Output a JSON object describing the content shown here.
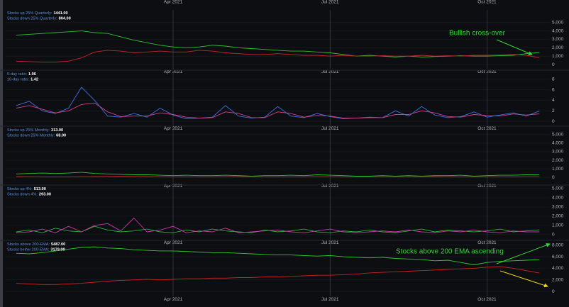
{
  "chart_data": [
    {
      "type": "line",
      "x": [
        0,
        0.25,
        0.5,
        0.75,
        1,
        1.25,
        1.5,
        1.75,
        2,
        2.25,
        2.5,
        2.75,
        3,
        3.25,
        3.5,
        3.75,
        4,
        4.25,
        4.5,
        4.75,
        5,
        5.25,
        5.5,
        5.75,
        6,
        6.25,
        6.5,
        6.75,
        7,
        7.25,
        7.5,
        7.75,
        8,
        8.25,
        8.5,
        8.75,
        9,
        9.25,
        9.5,
        9.75,
        10
      ],
      "xlim": [
        -0.2,
        10.2
      ],
      "xticks": [
        {
          "value": 3,
          "label": "Apr 2021"
        },
        {
          "value": 6,
          "label": "Jul 2021"
        },
        {
          "value": 9,
          "label": "Oct 2021"
        }
      ],
      "ylim": [
        -500,
        6500
      ],
      "yticks": [
        0,
        {
          "value": 1000,
          "label": "1,000"
        },
        {
          "value": 2000,
          "label": "2,000"
        },
        {
          "value": 3000,
          "label": "3,000"
        },
        {
          "value": 4000,
          "label": "4,000"
        },
        {
          "value": 5000,
          "label": "5,000"
        }
      ],
      "series": [
        {
          "name": "Stocks up 25% Quarterly:",
          "last_value_label": "1441.00",
          "color": "#2fc02f",
          "values": [
            3500,
            3600,
            3700,
            3800,
            3900,
            4000,
            3800,
            3700,
            3300,
            2900,
            2600,
            2300,
            2100,
            2000,
            2100,
            2300,
            2200,
            2000,
            1900,
            1800,
            1700,
            1600,
            1600,
            1500,
            1400,
            1200,
            1000,
            1100,
            1000,
            900,
            1000,
            900,
            950,
            1000,
            1050,
            1000,
            1000,
            1050,
            1100,
            1300,
            1441
          ]
        },
        {
          "name": "Stocks down 25% Quarterly:",
          "last_value_label": "804.00",
          "color": "#c4262b",
          "values": [
            400,
            350,
            300,
            300,
            400,
            800,
            1500,
            1700,
            1600,
            1400,
            1500,
            1600,
            1500,
            1500,
            1700,
            1600,
            1400,
            1300,
            1200,
            1200,
            1300,
            1200,
            1100,
            1100,
            1000,
            1100,
            1000,
            1000,
            1050,
            1000,
            1000,
            1100,
            1000,
            1050,
            1000,
            1100,
            1100,
            1150,
            1200,
            1100,
            804
          ]
        }
      ],
      "annotations": [
        {
          "text": "Bullish cross-over",
          "color": "#35d435"
        }
      ]
    },
    {
      "type": "line",
      "x": [
        0,
        0.25,
        0.5,
        0.75,
        1,
        1.25,
        1.5,
        1.75,
        2,
        2.25,
        2.5,
        2.75,
        3,
        3.25,
        3.5,
        3.75,
        4,
        4.25,
        4.5,
        4.75,
        5,
        5.25,
        5.5,
        5.75,
        6,
        6.25,
        6.5,
        6.75,
        7,
        7.25,
        7.5,
        7.75,
        8,
        8.25,
        8.5,
        8.75,
        9,
        9.25,
        9.5,
        9.75,
        10
      ],
      "xlim": [
        -0.2,
        10.2
      ],
      "xticks": [
        {
          "value": 3,
          "label": "Apr 2021"
        },
        {
          "value": 6,
          "label": "Jul 2021"
        },
        {
          "value": 9,
          "label": "Oct 2021"
        }
      ],
      "ylim": [
        -0.8,
        9.6
      ],
      "yticks": [
        0,
        2,
        4,
        6,
        8
      ],
      "series": [
        {
          "name": "5-day ratio:",
          "last_value_label": "1.96",
          "color": "#3f6fe0",
          "values": [
            3.0,
            3.8,
            2.0,
            1.5,
            2.5,
            6.5,
            4.0,
            1.0,
            0.8,
            1.5,
            0.8,
            2.5,
            1.2,
            0.5,
            0.6,
            0.8,
            3.0,
            1.0,
            0.6,
            0.8,
            2.8,
            1.0,
            0.7,
            1.5,
            0.9,
            0.5,
            0.6,
            0.8,
            0.7,
            2.0,
            1.0,
            2.8,
            1.2,
            0.7,
            0.9,
            1.8,
            0.8,
            1.2,
            1.6,
            1.0,
            1.96
          ]
        },
        {
          "name": "10-day ratio:",
          "last_value_label": "1.42",
          "color": "#d0408a",
          "values": [
            2.5,
            3.0,
            2.3,
            1.6,
            2.0,
            3.2,
            3.5,
            1.8,
            0.9,
            1.0,
            1.0,
            1.6,
            1.3,
            0.8,
            0.6,
            0.7,
            1.8,
            1.5,
            0.7,
            0.7,
            1.8,
            1.5,
            0.8,
            1.1,
            1.0,
            0.6,
            0.6,
            0.7,
            0.7,
            1.3,
            1.3,
            2.0,
            1.6,
            0.9,
            0.8,
            1.3,
            1.1,
            1.0,
            1.4,
            1.2,
            1.42
          ]
        }
      ]
    },
    {
      "type": "line",
      "x": [
        0,
        0.25,
        0.5,
        0.75,
        1,
        1.25,
        1.5,
        1.75,
        2,
        2.25,
        2.5,
        2.75,
        3,
        3.25,
        3.5,
        3.75,
        4,
        4.25,
        4.5,
        4.75,
        5,
        5.25,
        5.5,
        5.75,
        6,
        6.25,
        6.5,
        6.75,
        7,
        7.25,
        7.5,
        7.75,
        8,
        8.25,
        8.5,
        8.75,
        9,
        9.25,
        9.5,
        9.75,
        10
      ],
      "xlim": [
        -0.2,
        10.2
      ],
      "xticks": [
        {
          "value": 3,
          "label": "Apr 2021"
        },
        {
          "value": 6,
          "label": "Jul 2021"
        },
        {
          "value": 9,
          "label": "Oct 2021"
        }
      ],
      "ylim": [
        -650,
        5900
      ],
      "yticks": [
        0,
        {
          "value": 1000,
          "label": "1,000"
        },
        {
          "value": 2000,
          "label": "2,000"
        },
        {
          "value": 3000,
          "label": "3,000"
        },
        {
          "value": 4000,
          "label": "4,000"
        },
        {
          "value": 5000,
          "label": "5,000"
        }
      ],
      "series": [
        {
          "name": "Stocks up 25% Monthly:",
          "last_value_label": "313.00",
          "color": "#2fc02f",
          "values": [
            400,
            450,
            500,
            450,
            500,
            600,
            450,
            400,
            350,
            300,
            300,
            250,
            200,
            250,
            200,
            200,
            250,
            200,
            150,
            200,
            200,
            250,
            200,
            300,
            250,
            200,
            150,
            150,
            200,
            150,
            200,
            150,
            200,
            200,
            250,
            150,
            200,
            250,
            250,
            300,
            313
          ]
        },
        {
          "name": "Stocks down 25% Monthly:",
          "last_value_label": "68.00",
          "color": "#c4262b",
          "values": [
            100,
            80,
            60,
            50,
            60,
            80,
            100,
            120,
            150,
            120,
            100,
            80,
            60,
            60,
            50,
            60,
            80,
            100,
            80,
            60,
            60,
            50,
            60,
            80,
            80,
            60,
            50,
            60,
            80,
            70,
            60,
            80,
            100,
            80,
            60,
            70,
            80,
            70,
            60,
            70,
            68
          ]
        }
      ]
    },
    {
      "type": "line",
      "x": [
        0,
        0.25,
        0.5,
        0.75,
        1,
        1.25,
        1.5,
        1.75,
        2,
        2.25,
        2.5,
        2.75,
        3,
        3.25,
        3.5,
        3.75,
        4,
        4.25,
        4.5,
        4.75,
        5,
        5.25,
        5.5,
        5.75,
        6,
        6.25,
        6.5,
        6.75,
        7,
        7.25,
        7.5,
        7.75,
        8,
        8.25,
        8.5,
        8.75,
        9,
        9.25,
        9.5,
        9.75,
        10
      ],
      "xlim": [
        -0.2,
        10.2
      ],
      "xticks": [
        {
          "value": 3,
          "label": "Apr 2021"
        },
        {
          "value": 6,
          "label": "Jul 2021"
        },
        {
          "value": 9,
          "label": "Oct 2021"
        }
      ],
      "ylim": [
        -550,
        5300
      ],
      "yticks": [
        0,
        {
          "value": 1000,
          "label": "1,000"
        },
        {
          "value": 2000,
          "label": "2,000"
        },
        {
          "value": 3000,
          "label": "3,000"
        },
        {
          "value": 4000,
          "label": "4,000"
        },
        {
          "value": 5000,
          "label": "5,000"
        }
      ],
      "series": [
        {
          "name": "Stocks up 4%:",
          "last_value_label": "513.00",
          "color": "#25b535",
          "values": [
            300,
            500,
            200,
            700,
            400,
            300,
            900,
            500,
            300,
            400,
            600,
            300,
            200,
            500,
            300,
            600,
            400,
            300,
            200,
            500,
            300,
            400,
            600,
            300,
            200,
            400,
            300,
            500,
            300,
            200,
            400,
            600,
            300,
            500,
            400,
            300,
            400,
            600,
            300,
            400,
            513
          ]
        },
        {
          "name": "Stocks down 4%:",
          "last_value_label": "293.00",
          "color": "#c53aa8",
          "values": [
            200,
            300,
            600,
            200,
            900,
            300,
            1000,
            1200,
            400,
            1800,
            300,
            500,
            900,
            200,
            400,
            300,
            700,
            200,
            300,
            400,
            500,
            300,
            200,
            400,
            600,
            300,
            200,
            300,
            400,
            300,
            500,
            300,
            200,
            400,
            300,
            500,
            300,
            200,
            400,
            300,
            293
          ]
        }
      ]
    },
    {
      "type": "line",
      "x": [
        0,
        0.25,
        0.5,
        0.75,
        1,
        1.25,
        1.5,
        1.75,
        2,
        2.25,
        2.5,
        2.75,
        3,
        3.25,
        3.5,
        3.75,
        4,
        4.25,
        4.5,
        4.75,
        5,
        5.25,
        5.5,
        5.75,
        6,
        6.25,
        6.5,
        6.75,
        7,
        7.25,
        7.5,
        7.75,
        8,
        8.25,
        8.5,
        8.75,
        9,
        9.25,
        9.5,
        9.75,
        10
      ],
      "xlim": [
        -0.2,
        10.2
      ],
      "xticks": [
        {
          "value": 3,
          "label": "Apr 2021"
        },
        {
          "value": 6,
          "label": "Jul 2021"
        },
        {
          "value": 9,
          "label": "Oct 2021"
        }
      ],
      "ylim": [
        -850,
        8700
      ],
      "yticks": [
        0,
        {
          "value": 2000,
          "label": "2,000"
        },
        {
          "value": 4000,
          "label": "4,000"
        },
        {
          "value": 6000,
          "label": "6,000"
        },
        {
          "value": 8000,
          "label": "8,000"
        }
      ],
      "series": [
        {
          "name": "Stocks above 200-EMA:",
          "last_value_label": "5487.00",
          "color": "#2ecc2e",
          "values": [
            6600,
            6500,
            6700,
            7000,
            7300,
            7600,
            7700,
            7500,
            7400,
            7200,
            7100,
            7000,
            7000,
            6900,
            6800,
            6700,
            6700,
            6600,
            6500,
            6400,
            6300,
            6300,
            6200,
            6100,
            6200,
            6000,
            5900,
            5800,
            5900,
            5700,
            5600,
            5500,
            5300,
            5400,
            5000,
            4600,
            5000,
            5200,
            5300,
            5400,
            5487
          ]
        },
        {
          "name": "Stocks below 200-EMA:",
          "last_value_label": "3179.00",
          "color": "#d0201f",
          "values": [
            1400,
            1300,
            1200,
            1200,
            1300,
            1400,
            1600,
            1800,
            1900,
            2000,
            2100,
            2000,
            2100,
            2200,
            2200,
            2300,
            2300,
            2400,
            2400,
            2500,
            2500,
            2600,
            2700,
            2800,
            2800,
            2900,
            3000,
            3200,
            3300,
            3400,
            3500,
            3600,
            3700,
            3800,
            3900,
            4000,
            4200,
            4300,
            4000,
            3600,
            3179
          ]
        }
      ],
      "annotations": [
        {
          "text": "Stocks above 200 EMA ascending",
          "color": "#35d435"
        }
      ]
    }
  ]
}
